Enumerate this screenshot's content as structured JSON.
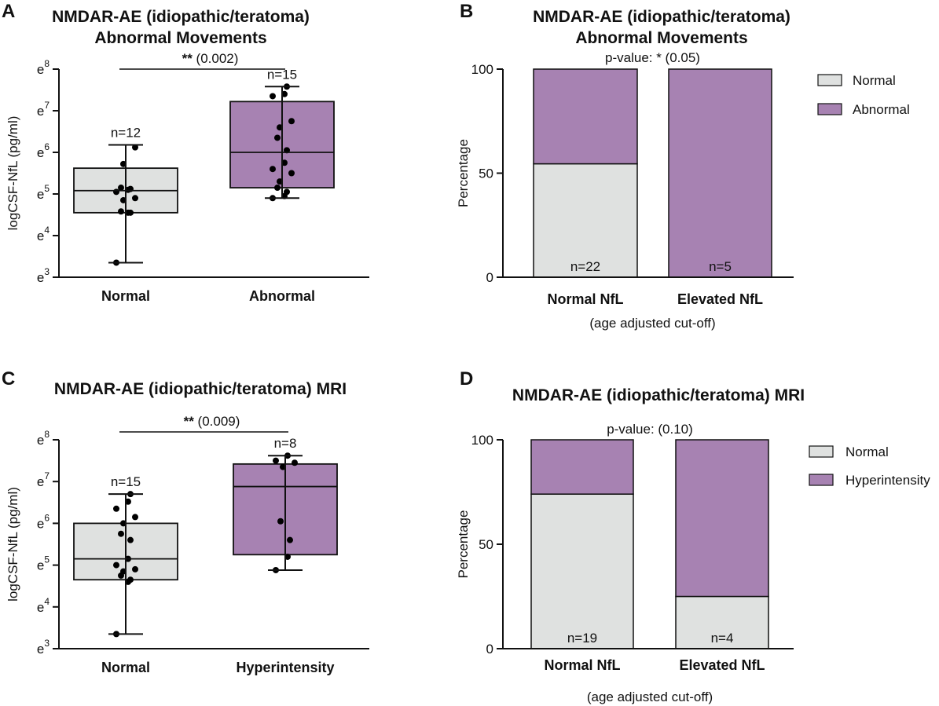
{
  "colors": {
    "normal": "#dfe1e0",
    "purple": "#a782b2",
    "stroke": "#111111"
  },
  "chart_data": [
    {
      "panel": "A",
      "type": "box",
      "title_lines": [
        "NMDAR-AE (idiopathic/teratoma)",
        "Abnormal Movements"
      ],
      "ylabel": "logCSF-NfL (pg/ml)",
      "yscale": "log_e",
      "ylim_exponent": [
        3,
        8
      ],
      "y_ticks": [
        {
          "base": "e",
          "exp": "8",
          "value": 8
        },
        {
          "base": "e",
          "exp": "7",
          "value": 7
        },
        {
          "base": "e",
          "exp": "6",
          "value": 6
        },
        {
          "base": "e",
          "exp": "5",
          "value": 5
        },
        {
          "base": "e",
          "exp": "4",
          "value": 4
        },
        {
          "base": "e",
          "exp": "3",
          "value": 3
        }
      ],
      "categories": [
        "Normal",
        "Abnormal"
      ],
      "groups": [
        {
          "name": "Normal",
          "n_label": "n=12",
          "min": 3.35,
          "q1": 4.55,
          "median": 5.08,
          "q3": 5.62,
          "max": 6.18,
          "points": [
            3.35,
            4.55,
            4.55,
            4.58,
            4.85,
            4.9,
            5.05,
            5.1,
            5.12,
            5.15,
            5.72,
            6.12
          ]
        },
        {
          "name": "Abnormal",
          "n_label": "n=15",
          "min": 4.9,
          "q1": 5.15,
          "median": 6.0,
          "q3": 7.22,
          "max": 7.58,
          "points": [
            4.9,
            4.95,
            5.05,
            5.15,
            5.3,
            5.5,
            5.6,
            5.75,
            6.05,
            6.35,
            6.6,
            6.75,
            7.35,
            7.4,
            7.58
          ]
        }
      ],
      "significance": {
        "stars": "**",
        "p_text": "(0.002)"
      }
    },
    {
      "panel": "B",
      "type": "stacked_bar",
      "title_lines": [
        "NMDAR-AE (idiopathic/teratoma)",
        "Abnormal Movements"
      ],
      "ylabel": "Percentage",
      "ylim": [
        0,
        100
      ],
      "y_ticks": [
        "0",
        "50",
        "100"
      ],
      "categories": [
        "Normal NfL",
        "Elevated NfL"
      ],
      "xlabel": "(age adjusted cut-off)",
      "series": [
        {
          "name": "Normal",
          "values": [
            54.5,
            0
          ]
        },
        {
          "name": "Abnormal",
          "values": [
            45.5,
            100
          ]
        }
      ],
      "n_labels": [
        "n=22",
        "n=5"
      ],
      "p_value": "p-value: * (0.05)",
      "legend": [
        "Normal",
        "Abnormal"
      ]
    },
    {
      "panel": "C",
      "type": "box",
      "title_lines": [
        "NMDAR-AE (idiopathic/teratoma) MRI"
      ],
      "ylabel": "logCSF-NfL (pg/ml)",
      "yscale": "log_e",
      "ylim_exponent": [
        3,
        8
      ],
      "y_ticks": [
        {
          "base": "e",
          "exp": "8",
          "value": 8
        },
        {
          "base": "e",
          "exp": "7",
          "value": 7
        },
        {
          "base": "e",
          "exp": "6",
          "value": 6
        },
        {
          "base": "e",
          "exp": "5",
          "value": 5
        },
        {
          "base": "e",
          "exp": "4",
          "value": 4
        },
        {
          "base": "e",
          "exp": "3",
          "value": 3
        }
      ],
      "categories": [
        "Normal",
        "Hyperintensity"
      ],
      "groups": [
        {
          "name": "Normal",
          "n_label": "n=15",
          "min": 3.35,
          "q1": 4.65,
          "median": 5.15,
          "q3": 6.0,
          "max": 6.7,
          "points": [
            3.35,
            4.6,
            4.65,
            4.75,
            4.85,
            4.9,
            5.0,
            5.15,
            5.6,
            5.75,
            6.0,
            6.15,
            6.35,
            6.52,
            6.7
          ]
        },
        {
          "name": "Hyperintensity",
          "n_label": "n=8",
          "min": 4.88,
          "q1": 5.25,
          "median": 6.88,
          "q3": 7.42,
          "max": 7.62,
          "points": [
            4.88,
            5.2,
            5.6,
            6.05,
            7.35,
            7.45,
            7.5,
            7.62
          ]
        }
      ],
      "significance": {
        "stars": "**",
        "p_text": "(0.009)"
      }
    },
    {
      "panel": "D",
      "type": "stacked_bar",
      "title_lines": [
        "NMDAR-AE (idiopathic/teratoma) MRI"
      ],
      "ylabel": "Percentage",
      "ylim": [
        0,
        100
      ],
      "y_ticks": [
        "0",
        "50",
        "100"
      ],
      "categories": [
        "Normal NfL",
        "Elevated NfL"
      ],
      "xlabel": "(age adjusted cut-off)",
      "series": [
        {
          "name": "Normal",
          "values": [
            74,
            25
          ]
        },
        {
          "name": "Hyperintensity",
          "values": [
            26,
            75
          ]
        }
      ],
      "n_labels": [
        "n=19",
        "n=4"
      ],
      "p_value": "p-value: (0.10)",
      "legend": [
        "Normal",
        "Hyperintensity"
      ]
    }
  ]
}
